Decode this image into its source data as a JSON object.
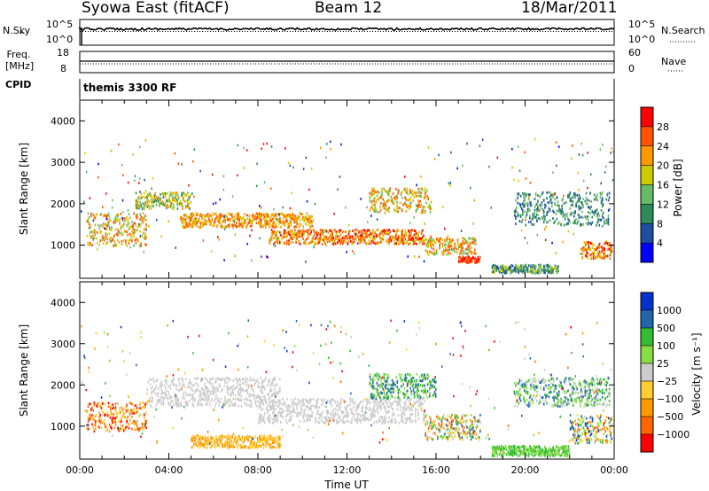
{
  "header": {
    "station": "Syowa East (fitACF)",
    "beam": "Beam 12",
    "date": "18/Mar/2011"
  },
  "top_panels": {
    "noise": {
      "left_label": "N.Sky",
      "right_label": "N.Search",
      "left_ticks": [
        "10^5",
        "10^0"
      ],
      "right_ticks": [
        "10^5",
        "10^0"
      ]
    },
    "freq": {
      "left_label": "Freq. [MHz]",
      "right_label": "Nave",
      "left_ticks": [
        "18",
        "8"
      ],
      "right_ticks": [
        "60",
        "0"
      ]
    },
    "cpid": {
      "label": "CPID",
      "value": "themis 3300 RF"
    }
  },
  "colors": {
    "power": [
      "#0000ff",
      "#1e4ea0",
      "#2e8b57",
      "#66bb66",
      "#cccc00",
      "#ff9900",
      "#ff5500",
      "#ff0000"
    ],
    "velocity": [
      "#ff0000",
      "#ff6600",
      "#ff9900",
      "#ffcc33",
      "#cccccc",
      "#88dd44",
      "#33bb33",
      "#2266aa",
      "#0033cc"
    ]
  },
  "chart_data": [
    {
      "type": "heatmap",
      "ylabel": "Slant Range [km]",
      "ylim": [
        200,
        4500
      ],
      "y_ticks": [
        "1000",
        "2000",
        "3000",
        "4000"
      ],
      "x_ticks": [
        "00:00",
        "04:00",
        "08:00",
        "12:00",
        "16:00",
        "20:00",
        "00:00"
      ],
      "colorbar": {
        "label": "Power [dB]",
        "ticks": [
          "4",
          "8",
          "12",
          "16",
          "20",
          "24",
          "28"
        ]
      },
      "bands": [
        {
          "t": [
            0.3,
            3.0
          ],
          "r": [
            1000,
            1800
          ],
          "lvl": [
            3,
            6
          ]
        },
        {
          "t": [
            2.5,
            5.0
          ],
          "r": [
            1900,
            2300
          ],
          "lvl": [
            2,
            5
          ]
        },
        {
          "t": [
            4.5,
            10.5
          ],
          "r": [
            1450,
            1800
          ],
          "lvl": [
            4,
            6
          ]
        },
        {
          "t": [
            8.5,
            15.5
          ],
          "r": [
            1050,
            1400
          ],
          "lvl": [
            4,
            7
          ]
        },
        {
          "t": [
            13.0,
            15.8
          ],
          "r": [
            1800,
            2400
          ],
          "lvl": [
            3,
            6
          ]
        },
        {
          "t": [
            15.5,
            17.8
          ],
          "r": [
            800,
            1200
          ],
          "lvl": [
            3,
            6
          ]
        },
        {
          "t": [
            17.0,
            18.0
          ],
          "r": [
            600,
            750
          ],
          "lvl": [
            6,
            7
          ]
        },
        {
          "t": [
            18.5,
            21.5
          ],
          "r": [
            350,
            550
          ],
          "lvl": [
            1,
            4
          ]
        },
        {
          "t": [
            19.5,
            23.8
          ],
          "r": [
            1500,
            2300
          ],
          "lvl": [
            1,
            3
          ]
        },
        {
          "t": [
            22.5,
            23.9
          ],
          "r": [
            700,
            1100
          ],
          "lvl": [
            4,
            7
          ]
        }
      ]
    },
    {
      "type": "heatmap",
      "ylabel": "Slant Range [km]",
      "xlabel": "Time UT",
      "ylim": [
        200,
        4500
      ],
      "y_ticks": [
        "1000",
        "2000",
        "3000",
        "4000"
      ],
      "x_ticks": [
        "00:00",
        "04:00",
        "08:00",
        "12:00",
        "16:00",
        "20:00",
        "00:00"
      ],
      "colorbar": {
        "label": "Velocity [m s⁻¹]",
        "ticks": [
          "1000",
          "500",
          "100",
          "25",
          "−25",
          "−100",
          "−500",
          "−1000"
        ]
      },
      "bands": [
        {
          "t": [
            0.3,
            3.0
          ],
          "r": [
            900,
            1600
          ],
          "lvl": [
            0,
            3
          ]
        },
        {
          "t": [
            3.0,
            9.0
          ],
          "r": [
            1500,
            2200
          ],
          "lvl": [
            4,
            4
          ]
        },
        {
          "t": [
            5.0,
            9.0
          ],
          "r": [
            500,
            800
          ],
          "lvl": [
            2,
            3
          ]
        },
        {
          "t": [
            8.0,
            15.5
          ],
          "r": [
            1100,
            1700
          ],
          "lvl": [
            4,
            4
          ]
        },
        {
          "t": [
            13.0,
            16.0
          ],
          "r": [
            1700,
            2300
          ],
          "lvl": [
            5,
            7
          ]
        },
        {
          "t": [
            15.5,
            18.0
          ],
          "r": [
            700,
            1300
          ],
          "lvl": [
            1,
            7
          ]
        },
        {
          "t": [
            18.5,
            22.0
          ],
          "r": [
            300,
            550
          ],
          "lvl": [
            5,
            6
          ]
        },
        {
          "t": [
            19.5,
            23.8
          ],
          "r": [
            1500,
            2200
          ],
          "lvl": [
            4,
            7
          ]
        },
        {
          "t": [
            22.0,
            23.9
          ],
          "r": [
            600,
            1300
          ],
          "lvl": [
            1,
            8
          ]
        }
      ]
    }
  ]
}
